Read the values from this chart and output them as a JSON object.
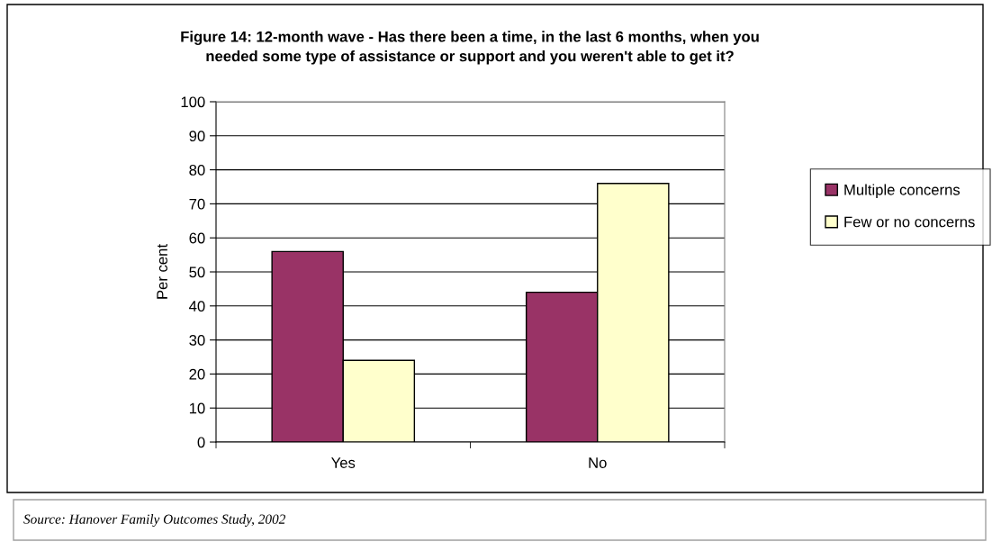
{
  "chart_data": {
    "type": "bar",
    "title": "Figure 14: 12-month wave - Has there been a time, in the last 6 months, when you\nneeded some type of assistance or support and you weren't able to get it?",
    "ylabel": "Per cent",
    "categories": [
      "Yes",
      "No"
    ],
    "series": [
      {
        "name": "Multiple concerns",
        "color": "#993366",
        "values": [
          56,
          44
        ]
      },
      {
        "name": "Few or no concerns",
        "color": "#ffffcc",
        "values": [
          24,
          76
        ]
      }
    ],
    "ylim": [
      0,
      100
    ],
    "yticks": [
      0,
      10,
      20,
      30,
      40,
      50,
      60,
      70,
      80,
      90,
      100
    ],
    "grid": "y",
    "legend": "right",
    "annotations": [
      "Source: Hanover Family Outcomes Study, 2002"
    ]
  }
}
